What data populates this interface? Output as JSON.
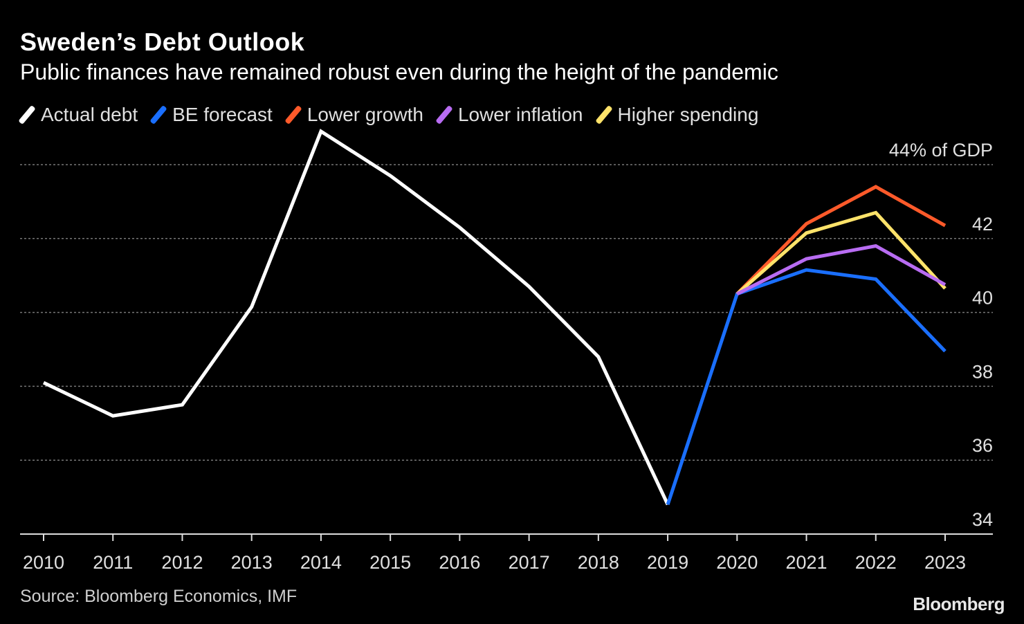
{
  "title": "Sweden’s Debt Outlook",
  "subtitle": "Public finances have remained robust even during the height of the pandemic",
  "source": "Source: Bloomberg Economics, IMF",
  "logo": "Bloomberg",
  "chart_data": {
    "type": "line",
    "title": "Sweden’s Debt Outlook",
    "subtitle": "Public finances have remained robust even during the height of the pandemic",
    "ylabel": "% of GDP",
    "ylim": [
      34,
      44
    ],
    "yticks": [
      34,
      36,
      38,
      40,
      42,
      44
    ],
    "ytick_labels": [
      "34",
      "36",
      "38",
      "40",
      "42",
      "44% of GDP"
    ],
    "x": [
      2010,
      2011,
      2012,
      2013,
      2014,
      2015,
      2016,
      2017,
      2018,
      2019,
      2020,
      2021,
      2022,
      2023
    ],
    "grid": "horizontal dotted",
    "legend_position": "top-left",
    "series": [
      {
        "name": "Actual debt",
        "color": "#ffffff",
        "x": [
          2010,
          2011,
          2012,
          2013,
          2014,
          2015,
          2016,
          2017,
          2018,
          2019
        ],
        "values": [
          38.1,
          37.2,
          37.5,
          40.15,
          44.9,
          43.7,
          42.3,
          40.7,
          38.8,
          34.8
        ]
      },
      {
        "name": "BE forecast",
        "color": "#1a6fff",
        "x": [
          2019,
          2020,
          2021,
          2022,
          2023
        ],
        "values": [
          34.8,
          40.5,
          41.15,
          40.9,
          38.95
        ]
      },
      {
        "name": "Lower growth",
        "color": "#ff5a2a",
        "x": [
          2020,
          2021,
          2022,
          2023
        ],
        "values": [
          40.5,
          42.4,
          43.4,
          42.35
        ]
      },
      {
        "name": "Lower inflation",
        "color": "#b86cf2",
        "x": [
          2020,
          2021,
          2022,
          2023
        ],
        "values": [
          40.5,
          41.45,
          41.8,
          40.75
        ]
      },
      {
        "name": "Higher spending",
        "color": "#ffe36a",
        "x": [
          2020,
          2021,
          2022,
          2023
        ],
        "values": [
          40.5,
          42.15,
          42.7,
          40.65
        ]
      }
    ]
  }
}
